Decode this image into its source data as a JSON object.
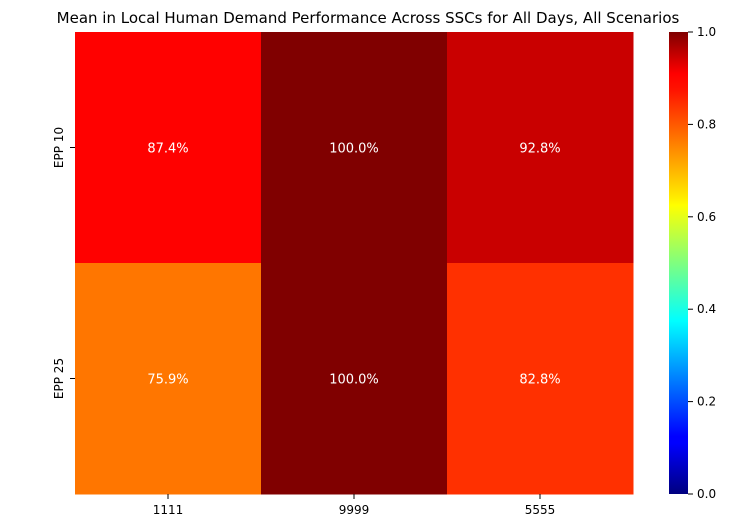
{
  "chart_data": {
    "type": "heatmap",
    "title": "Mean in Local Human Demand Performance Across SSCs for All Days, All Scenarios",
    "x_categories": [
      "1111",
      "9999",
      "5555"
    ],
    "y_categories": [
      "EPP 10",
      "EPP 25"
    ],
    "values": [
      [
        0.874,
        1.0,
        0.928
      ],
      [
        0.759,
        1.0,
        0.828
      ]
    ],
    "cell_labels": [
      [
        "87.4%",
        "100.0%",
        "92.8%"
      ],
      [
        "75.9%",
        "100.0%",
        "82.8%"
      ]
    ],
    "colormap": "jet",
    "vmin": 0.0,
    "vmax": 1.0,
    "colorbar_ticks": [
      "0.0",
      "0.2",
      "0.4",
      "0.6",
      "0.8",
      "1.0"
    ]
  }
}
